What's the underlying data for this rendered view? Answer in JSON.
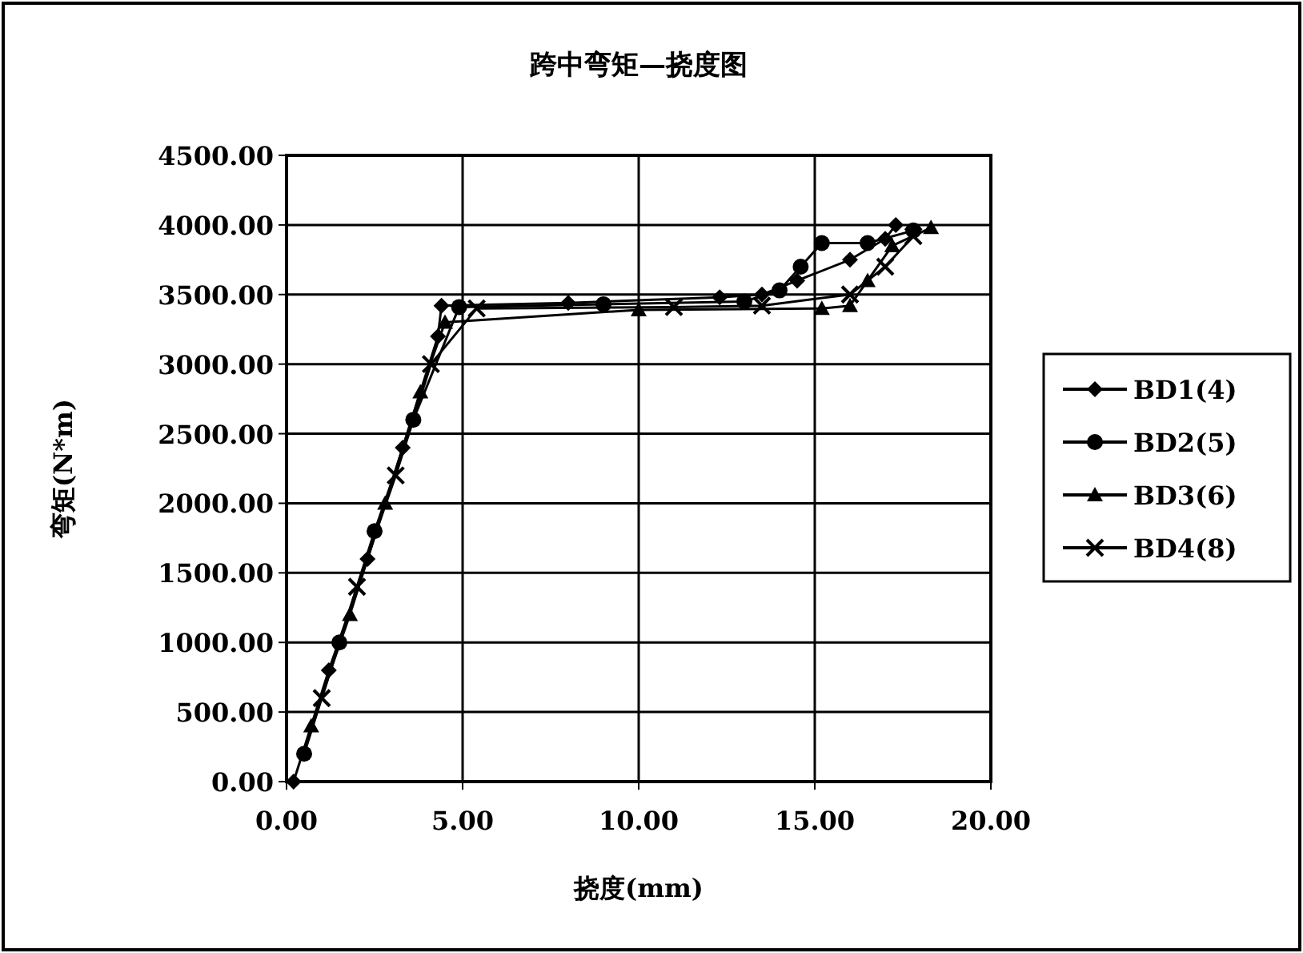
{
  "chart_data": {
    "type": "line",
    "title": "跨中弯矩—挠度图",
    "xlabel": "挠度(mm)",
    "ylabel": "弯矩(N*m)",
    "xlim": [
      0,
      20
    ],
    "ylim": [
      0,
      4500
    ],
    "xticks": [
      {
        "value": 0,
        "label": "0.00"
      },
      {
        "value": 5,
        "label": "5.00"
      },
      {
        "value": 10,
        "label": "10.00"
      },
      {
        "value": 15,
        "label": "15.00"
      },
      {
        "value": 20,
        "label": "20.00"
      }
    ],
    "yticks": [
      {
        "value": 0,
        "label": "0.00"
      },
      {
        "value": 500,
        "label": "500.00"
      },
      {
        "value": 1000,
        "label": "1000.00"
      },
      {
        "value": 1500,
        "label": "1500.00"
      },
      {
        "value": 2000,
        "label": "2000.00"
      },
      {
        "value": 2500,
        "label": "2500.00"
      },
      {
        "value": 3000,
        "label": "3000.00"
      },
      {
        "value": 3500,
        "label": "3500.00"
      },
      {
        "value": 4000,
        "label": "4000.00"
      },
      {
        "value": 4500,
        "label": "4500.00"
      }
    ],
    "grid": true,
    "legend": "right",
    "series": [
      {
        "name": "BD1(4)",
        "color": "#000000",
        "marker": "diamond",
        "x": [
          0.2,
          1.2,
          2.3,
          3.3,
          4.3,
          4.4,
          8.0,
          12.3,
          13.5,
          14.5,
          16.0,
          17.0,
          17.3
        ],
        "values": [
          0,
          800,
          1600,
          2400,
          3200,
          3420,
          3440,
          3480,
          3500,
          3600,
          3750,
          3900,
          4000
        ]
      },
      {
        "name": "BD2(5)",
        "color": "#000000",
        "marker": "circle",
        "x": [
          0.5,
          1.5,
          2.5,
          3.6,
          4.9,
          9.0,
          13.0,
          14.0,
          14.6,
          15.2,
          16.5,
          17.8
        ],
        "values": [
          200,
          1000,
          1800,
          2600,
          3410,
          3430,
          3450,
          3530,
          3700,
          3870,
          3870,
          3960
        ]
      },
      {
        "name": "BD3(6)",
        "color": "#000000",
        "marker": "triangle",
        "x": [
          0.7,
          1.8,
          2.8,
          3.8,
          4.5,
          10.0,
          15.2,
          16.0,
          16.5,
          17.2,
          18.3
        ],
        "values": [
          400,
          1200,
          2000,
          2800,
          3300,
          3390,
          3400,
          3420,
          3600,
          3850,
          3980
        ]
      },
      {
        "name": "BD4(8)",
        "color": "#000000",
        "marker": "cross",
        "x": [
          1.0,
          2.0,
          3.1,
          4.1,
          5.4,
          11.0,
          13.5,
          16.0,
          17.0,
          17.8
        ],
        "values": [
          600,
          1400,
          2200,
          3000,
          3400,
          3410,
          3420,
          3500,
          3700,
          3920
        ]
      }
    ]
  }
}
